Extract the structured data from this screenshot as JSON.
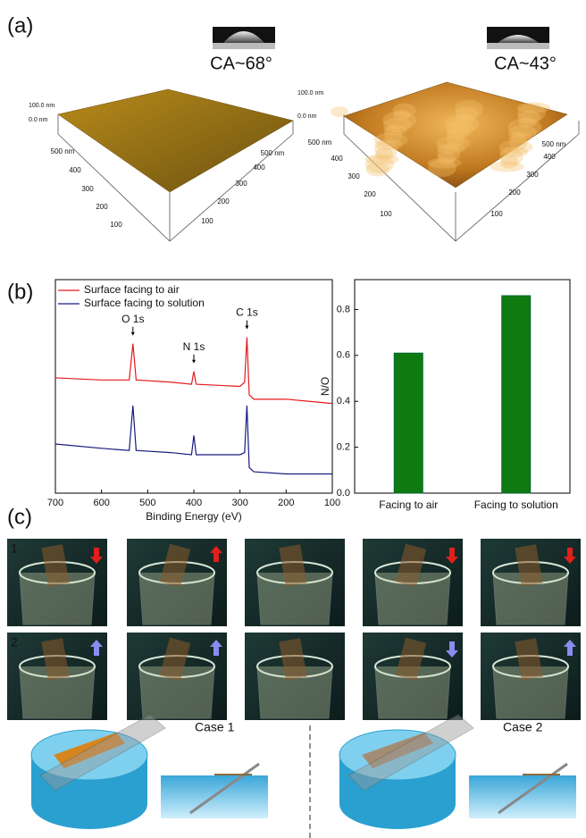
{
  "panel_labels": [
    "(a)",
    "(b)",
    "(c)"
  ],
  "panel_a": {
    "left": {
      "contact_angle": "CA~68°",
      "z_labels": [
        "100.0 nm",
        "0.0 nm"
      ],
      "axis_labels_1": [
        "500 nm",
        "400",
        "300",
        "200",
        "100"
      ],
      "axis_labels_2": [
        "500 nm",
        "400",
        "300",
        "200",
        "100"
      ]
    },
    "right": {
      "contact_angle": "CA~43°",
      "z_labels": [
        "100.0 nm",
        "0.0 nm"
      ],
      "axis_labels_1": [
        "500 nm",
        "400",
        "300",
        "200",
        "100"
      ],
      "axis_labels_2": [
        "500 nm",
        "400",
        "300",
        "200",
        "100"
      ]
    }
  },
  "chart_data": [
    {
      "type": "line",
      "xlabel": "Binding Energy (eV)",
      "x": [
        700,
        600,
        540,
        532,
        525,
        450,
        405,
        400,
        395,
        300,
        290,
        285,
        280,
        270,
        200,
        150,
        100
      ],
      "series": [
        {
          "name": "Surface facing to air",
          "color": "#e31a1c",
          "values": [
            54,
            53,
            53,
            70,
            53,
            52,
            51,
            57,
            51,
            50,
            52,
            73,
            46,
            44,
            44,
            43,
            42
          ]
        },
        {
          "name": "Surface facing to solution",
          "color": "#1a1a80",
          "values": [
            23,
            21,
            20,
            41,
            20,
            19,
            18,
            27,
            18,
            18,
            19,
            41,
            12,
            10,
            9,
            9,
            9
          ]
        }
      ],
      "annotations": [
        {
          "text": "O 1s",
          "x": 532
        },
        {
          "text": "N 1s",
          "x": 400
        },
        {
          "text": "C 1s",
          "x": 285
        }
      ],
      "xlim": [
        700,
        100
      ],
      "xticks": [
        700,
        600,
        500,
        400,
        300,
        200,
        100
      ],
      "ylim": [
        0,
        100
      ]
    },
    {
      "type": "bar",
      "ylabel": "N/O",
      "categories": [
        "Facing to air",
        "Facing to solution"
      ],
      "values": [
        0.61,
        0.86
      ],
      "color": "#0f7a0f",
      "ylim": [
        0,
        0.93
      ],
      "yticks": [
        {
          "value": 0,
          "label": "0.0"
        },
        {
          "value": 0.2,
          "label": "0.2"
        },
        {
          "value": 0.4,
          "label": "0.4"
        },
        {
          "value": 0.6,
          "label": "0.6"
        },
        {
          "value": 0.8,
          "label": "0.8"
        }
      ]
    }
  ],
  "panel_c": {
    "row_labels": [
      "1",
      "2"
    ],
    "cases": [
      "Case 1",
      "Case 2"
    ]
  }
}
